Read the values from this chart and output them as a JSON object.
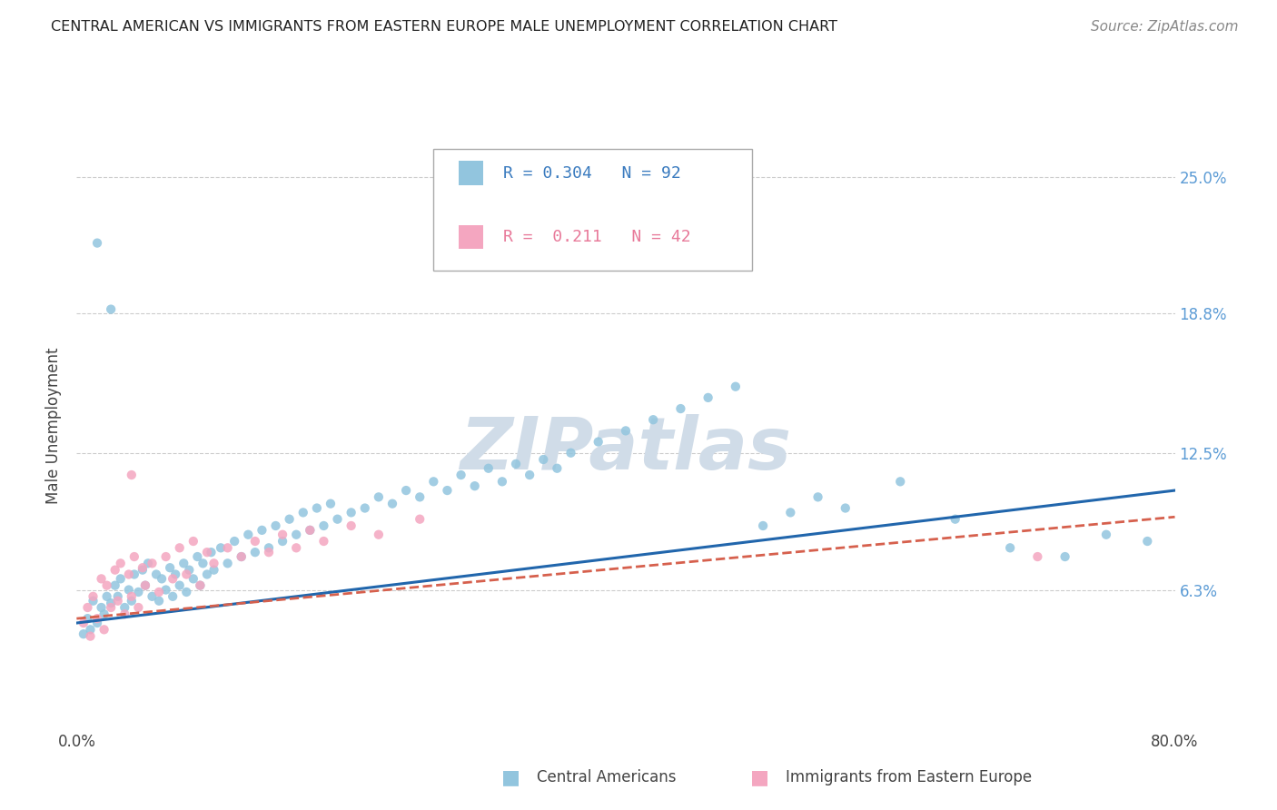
{
  "title": "CENTRAL AMERICAN VS IMMIGRANTS FROM EASTERN EUROPE MALE UNEMPLOYMENT CORRELATION CHART",
  "source": "Source: ZipAtlas.com",
  "ylabel": "Male Unemployment",
  "xmin": 0.0,
  "xmax": 0.8,
  "ymin": 0.0,
  "ymax": 0.275,
  "yticks": [
    0.063,
    0.125,
    0.188,
    0.25
  ],
  "ytick_labels": [
    "6.3%",
    "12.5%",
    "18.8%",
    "25.0%"
  ],
  "xticks": [
    0.0,
    0.8
  ],
  "xtick_labels": [
    "0.0%",
    "80.0%"
  ],
  "blue_color": "#92c5de",
  "pink_color": "#f4a6c0",
  "blue_line_color": "#2166ac",
  "pink_line_color": "#d6604d",
  "legend_blue_r": "R = 0.304",
  "legend_blue_n": "N = 92",
  "legend_pink_r": "R =  0.211",
  "legend_pink_n": "N = 42",
  "watermark": "ZIPatlas",
  "watermark_color": "#d0dce8",
  "blue_scatter_x": [
    0.005,
    0.008,
    0.01,
    0.012,
    0.015,
    0.018,
    0.02,
    0.022,
    0.025,
    0.028,
    0.03,
    0.032,
    0.035,
    0.038,
    0.04,
    0.042,
    0.045,
    0.048,
    0.05,
    0.052,
    0.055,
    0.058,
    0.06,
    0.062,
    0.065,
    0.068,
    0.07,
    0.072,
    0.075,
    0.078,
    0.08,
    0.082,
    0.085,
    0.088,
    0.09,
    0.092,
    0.095,
    0.098,
    0.1,
    0.105,
    0.11,
    0.115,
    0.12,
    0.125,
    0.13,
    0.135,
    0.14,
    0.145,
    0.15,
    0.155,
    0.16,
    0.165,
    0.17,
    0.175,
    0.18,
    0.185,
    0.19,
    0.2,
    0.21,
    0.22,
    0.23,
    0.24,
    0.25,
    0.26,
    0.27,
    0.28,
    0.29,
    0.3,
    0.31,
    0.32,
    0.33,
    0.34,
    0.35,
    0.36,
    0.38,
    0.4,
    0.42,
    0.44,
    0.46,
    0.48,
    0.5,
    0.52,
    0.54,
    0.56,
    0.6,
    0.64,
    0.68,
    0.72,
    0.75,
    0.78,
    0.015,
    0.025
  ],
  "blue_scatter_y": [
    0.043,
    0.05,
    0.045,
    0.058,
    0.048,
    0.055,
    0.052,
    0.06,
    0.057,
    0.065,
    0.06,
    0.068,
    0.055,
    0.063,
    0.058,
    0.07,
    0.062,
    0.072,
    0.065,
    0.075,
    0.06,
    0.07,
    0.058,
    0.068,
    0.063,
    0.073,
    0.06,
    0.07,
    0.065,
    0.075,
    0.062,
    0.072,
    0.068,
    0.078,
    0.065,
    0.075,
    0.07,
    0.08,
    0.072,
    0.082,
    0.075,
    0.085,
    0.078,
    0.088,
    0.08,
    0.09,
    0.082,
    0.092,
    0.085,
    0.095,
    0.088,
    0.098,
    0.09,
    0.1,
    0.092,
    0.102,
    0.095,
    0.098,
    0.1,
    0.105,
    0.102,
    0.108,
    0.105,
    0.112,
    0.108,
    0.115,
    0.11,
    0.118,
    0.112,
    0.12,
    0.115,
    0.122,
    0.118,
    0.125,
    0.13,
    0.135,
    0.14,
    0.145,
    0.15,
    0.155,
    0.092,
    0.098,
    0.105,
    0.1,
    0.112,
    0.095,
    0.082,
    0.078,
    0.088,
    0.085,
    0.22,
    0.19
  ],
  "pink_scatter_x": [
    0.005,
    0.008,
    0.01,
    0.012,
    0.015,
    0.018,
    0.02,
    0.022,
    0.025,
    0.028,
    0.03,
    0.032,
    0.035,
    0.038,
    0.04,
    0.042,
    0.045,
    0.048,
    0.05,
    0.055,
    0.06,
    0.065,
    0.07,
    0.075,
    0.08,
    0.085,
    0.09,
    0.095,
    0.1,
    0.11,
    0.12,
    0.13,
    0.14,
    0.15,
    0.16,
    0.17,
    0.18,
    0.2,
    0.22,
    0.25,
    0.7,
    0.04
  ],
  "pink_scatter_y": [
    0.048,
    0.055,
    0.042,
    0.06,
    0.05,
    0.068,
    0.045,
    0.065,
    0.055,
    0.072,
    0.058,
    0.075,
    0.052,
    0.07,
    0.06,
    0.078,
    0.055,
    0.073,
    0.065,
    0.075,
    0.062,
    0.078,
    0.068,
    0.082,
    0.07,
    0.085,
    0.065,
    0.08,
    0.075,
    0.082,
    0.078,
    0.085,
    0.08,
    0.088,
    0.082,
    0.09,
    0.085,
    0.092,
    0.088,
    0.095,
    0.078,
    0.115
  ],
  "title_fontsize": 11.5,
  "source_fontsize": 11,
  "axis_label_fontsize": 12,
  "tick_fontsize": 12
}
